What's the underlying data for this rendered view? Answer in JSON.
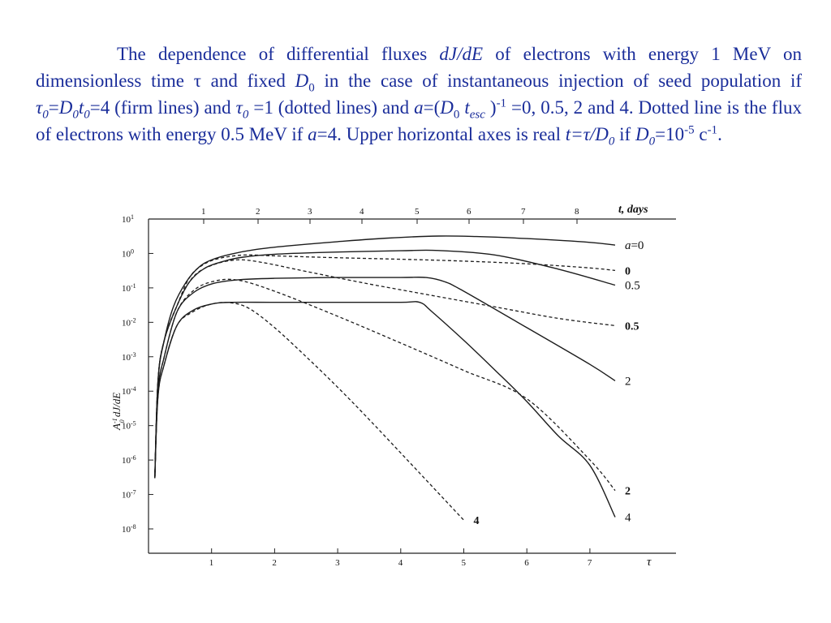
{
  "caption": {
    "p1": "The dependence of differential fluxes ",
    "dJdE": "dJ/dE",
    "p2": " of electrons with energy 1 MeV on dimensionless time τ and fixed ",
    "D": "D",
    "sub0": "0",
    "p3": " in the case of instantaneous injection of seed population if ",
    "tau": "τ",
    "eq1": "=",
    "t": "t",
    "p4": "=4 (firm lines) and ",
    "p5": " =1 (dotted lines) and ",
    "a": "a",
    "eq2": "=(",
    "sub_esc": "esc",
    "p6": " )",
    "sup_m1": "-1",
    "p7": " =0, 0.5, 2 and 4. Dotted line is the flux of electrons with energy 0.5 MeV if ",
    "p8": "=4. Upper horizontal axes is real ",
    "t_eq": "t=τ/D",
    "p9": " if ",
    "p10": "=10",
    "sup_m5": "-5",
    "p11": " c",
    "p12": "."
  },
  "chart_data": {
    "type": "line",
    "xlabel": "τ",
    "x2label": "t, days",
    "ylabel_main": "A",
    "ylabel_sup": "-1",
    "ylabel_sub": "0",
    "ylabel_rest": " dJ/dE",
    "xlim": [
      0,
      7.5
    ],
    "ylim": [
      1e-08,
      10
    ],
    "yscale": "log",
    "x_ticks": [
      "1",
      "2",
      "3",
      "4",
      "5",
      "6",
      "7"
    ],
    "x2_ticks": [
      "1",
      "2",
      "3",
      "4",
      "5",
      "6",
      "7",
      "8"
    ],
    "y_ticks": [
      {
        "base": "10",
        "exp": "1",
        "value": 10
      },
      {
        "base": "10",
        "exp": "0",
        "value": 1
      },
      {
        "base": "10",
        "exp": "-1",
        "value": 0.1
      },
      {
        "base": "10",
        "exp": "-2",
        "value": 0.01
      },
      {
        "base": "10",
        "exp": "-3",
        "value": 0.001
      },
      {
        "base": "10",
        "exp": "-4",
        "value": 0.0001
      },
      {
        "base": "10",
        "exp": "-5",
        "value": 1e-05
      },
      {
        "base": "10",
        "exp": "-6",
        "value": 1e-06
      },
      {
        "base": "10",
        "exp": "-7",
        "value": 1e-07
      },
      {
        "base": "10",
        "exp": "-8",
        "value": 1e-08
      }
    ],
    "series": [
      {
        "label": "a=0",
        "style": "solid",
        "points": [
          [
            0.1,
            3e-07
          ],
          [
            0.15,
            0.0002
          ],
          [
            0.25,
            0.003
          ],
          [
            0.4,
            0.03
          ],
          [
            0.6,
            0.15
          ],
          [
            0.8,
            0.4
          ],
          [
            1.0,
            0.65
          ],
          [
            1.3,
            0.95
          ],
          [
            1.7,
            1.3
          ],
          [
            2.2,
            1.65
          ],
          [
            3.0,
            2.2
          ],
          [
            3.8,
            2.8
          ],
          [
            4.6,
            3.2
          ],
          [
            5.2,
            3.1
          ],
          [
            6.0,
            2.7
          ],
          [
            7.0,
            2.1
          ],
          [
            7.4,
            1.75
          ]
        ]
      },
      {
        "label": "0",
        "style": "dotted",
        "points": [
          [
            0.1,
            3e-07
          ],
          [
            0.15,
            0.0002
          ],
          [
            0.25,
            0.003
          ],
          [
            0.45,
            0.03
          ],
          [
            0.65,
            0.2
          ],
          [
            0.85,
            0.45
          ],
          [
            1.1,
            0.7
          ],
          [
            1.5,
            0.9
          ],
          [
            2.0,
            0.85
          ],
          [
            3.0,
            0.75
          ],
          [
            4.0,
            0.68
          ],
          [
            5.0,
            0.6
          ],
          [
            6.0,
            0.5
          ],
          [
            7.0,
            0.38
          ],
          [
            7.4,
            0.32
          ]
        ]
      },
      {
        "label": "0.5",
        "style": "solid",
        "points": [
          [
            0.1,
            3e-07
          ],
          [
            0.15,
            0.0002
          ],
          [
            0.25,
            0.003
          ],
          [
            0.45,
            0.03
          ],
          [
            0.65,
            0.15
          ],
          [
            0.9,
            0.38
          ],
          [
            1.2,
            0.6
          ],
          [
            1.5,
            0.78
          ],
          [
            2.0,
            0.95
          ],
          [
            3.0,
            1.1
          ],
          [
            4.0,
            1.2
          ],
          [
            4.6,
            1.22
          ],
          [
            5.5,
            0.9
          ],
          [
            6.5,
            0.35
          ],
          [
            7.4,
            0.12
          ]
        ]
      },
      {
        "label": "0.5",
        "style": "dotted",
        "points": [
          [
            0.1,
            3e-07
          ],
          [
            0.15,
            0.0002
          ],
          [
            0.25,
            0.003
          ],
          [
            0.45,
            0.03
          ],
          [
            0.7,
            0.2
          ],
          [
            1.0,
            0.45
          ],
          [
            1.4,
            0.65
          ],
          [
            1.8,
            0.55
          ],
          [
            2.5,
            0.3
          ],
          [
            3.5,
            0.13
          ],
          [
            4.5,
            0.06
          ],
          [
            5.5,
            0.028
          ],
          [
            6.5,
            0.013
          ],
          [
            7.4,
            0.008
          ]
        ]
      },
      {
        "label": "2",
        "style": "solid",
        "points": [
          [
            0.1,
            3e-07
          ],
          [
            0.15,
            0.0001
          ],
          [
            0.25,
            0.001
          ],
          [
            0.45,
            0.02
          ],
          [
            0.7,
            0.07
          ],
          [
            1.0,
            0.13
          ],
          [
            1.4,
            0.17
          ],
          [
            2.0,
            0.19
          ],
          [
            3.0,
            0.2
          ],
          [
            4.0,
            0.2
          ],
          [
            4.4,
            0.2
          ],
          [
            4.7,
            0.15
          ],
          [
            5.0,
            0.08
          ],
          [
            6.0,
            0.007
          ],
          [
            7.0,
            0.0006
          ],
          [
            7.4,
            0.0002
          ]
        ]
      },
      {
        "label": "2",
        "style": "dotted",
        "points": [
          [
            0.1,
            3e-07
          ],
          [
            0.15,
            0.0001
          ],
          [
            0.25,
            0.001
          ],
          [
            0.45,
            0.02
          ],
          [
            0.7,
            0.08
          ],
          [
            1.0,
            0.15
          ],
          [
            1.4,
            0.17
          ],
          [
            2.0,
            0.08
          ],
          [
            3.0,
            0.015
          ],
          [
            4.0,
            0.0025
          ],
          [
            5.0,
            0.0004
          ],
          [
            6.0,
            6e-05
          ],
          [
            7.0,
            1e-06
          ],
          [
            7.4,
            1.3e-07
          ]
        ]
      },
      {
        "label": "4",
        "style": "solid",
        "points": [
          [
            0.1,
            3e-07
          ],
          [
            0.15,
            7e-05
          ],
          [
            0.25,
            0.0006
          ],
          [
            0.45,
            0.008
          ],
          [
            0.7,
            0.022
          ],
          [
            1.0,
            0.034
          ],
          [
            1.3,
            0.038
          ],
          [
            2.0,
            0.038
          ],
          [
            3.0,
            0.038
          ],
          [
            4.0,
            0.038
          ],
          [
            4.3,
            0.038
          ],
          [
            4.5,
            0.02
          ],
          [
            5.0,
            0.003
          ],
          [
            5.5,
            0.0004
          ],
          [
            6.0,
            5e-05
          ],
          [
            6.5,
            5e-06
          ],
          [
            7.0,
            7e-07
          ],
          [
            7.4,
            2.2e-08
          ]
        ]
      },
      {
        "label": "4",
        "style": "dotted",
        "points": [
          [
            0.1,
            3e-07
          ],
          [
            0.15,
            7e-05
          ],
          [
            0.25,
            0.0006
          ],
          [
            0.45,
            0.008
          ],
          [
            0.7,
            0.02
          ],
          [
            1.0,
            0.034
          ],
          [
            1.3,
            0.037
          ],
          [
            1.6,
            0.025
          ],
          [
            2.0,
            0.007
          ],
          [
            2.5,
            0.001
          ],
          [
            3.0,
            0.00013
          ],
          [
            3.5,
            1.5e-05
          ],
          [
            4.0,
            1.6e-06
          ],
          [
            4.5,
            1.7e-07
          ],
          [
            5.0,
            1.8e-08
          ]
        ]
      }
    ],
    "curve_labels": [
      {
        "text": "a=0",
        "weight": "normal",
        "at": [
          7.4,
          1.75
        ]
      },
      {
        "text": "0",
        "weight": "bold",
        "at": [
          7.4,
          0.32
        ]
      },
      {
        "text": "0.5",
        "weight": "normal",
        "at": [
          7.4,
          0.12
        ]
      },
      {
        "text": "0.5",
        "weight": "bold",
        "at": [
          7.4,
          0.008
        ]
      },
      {
        "text": "2",
        "weight": "normal",
        "at": [
          7.4,
          0.0002
        ]
      },
      {
        "text": "2",
        "weight": "bold",
        "at": [
          7.4,
          1.3e-07
        ]
      },
      {
        "text": "4",
        "weight": "normal",
        "at": [
          7.4,
          2.2e-08
        ]
      },
      {
        "text": "4",
        "weight": "bold",
        "at": [
          5.0,
          1.8e-08
        ]
      }
    ]
  }
}
